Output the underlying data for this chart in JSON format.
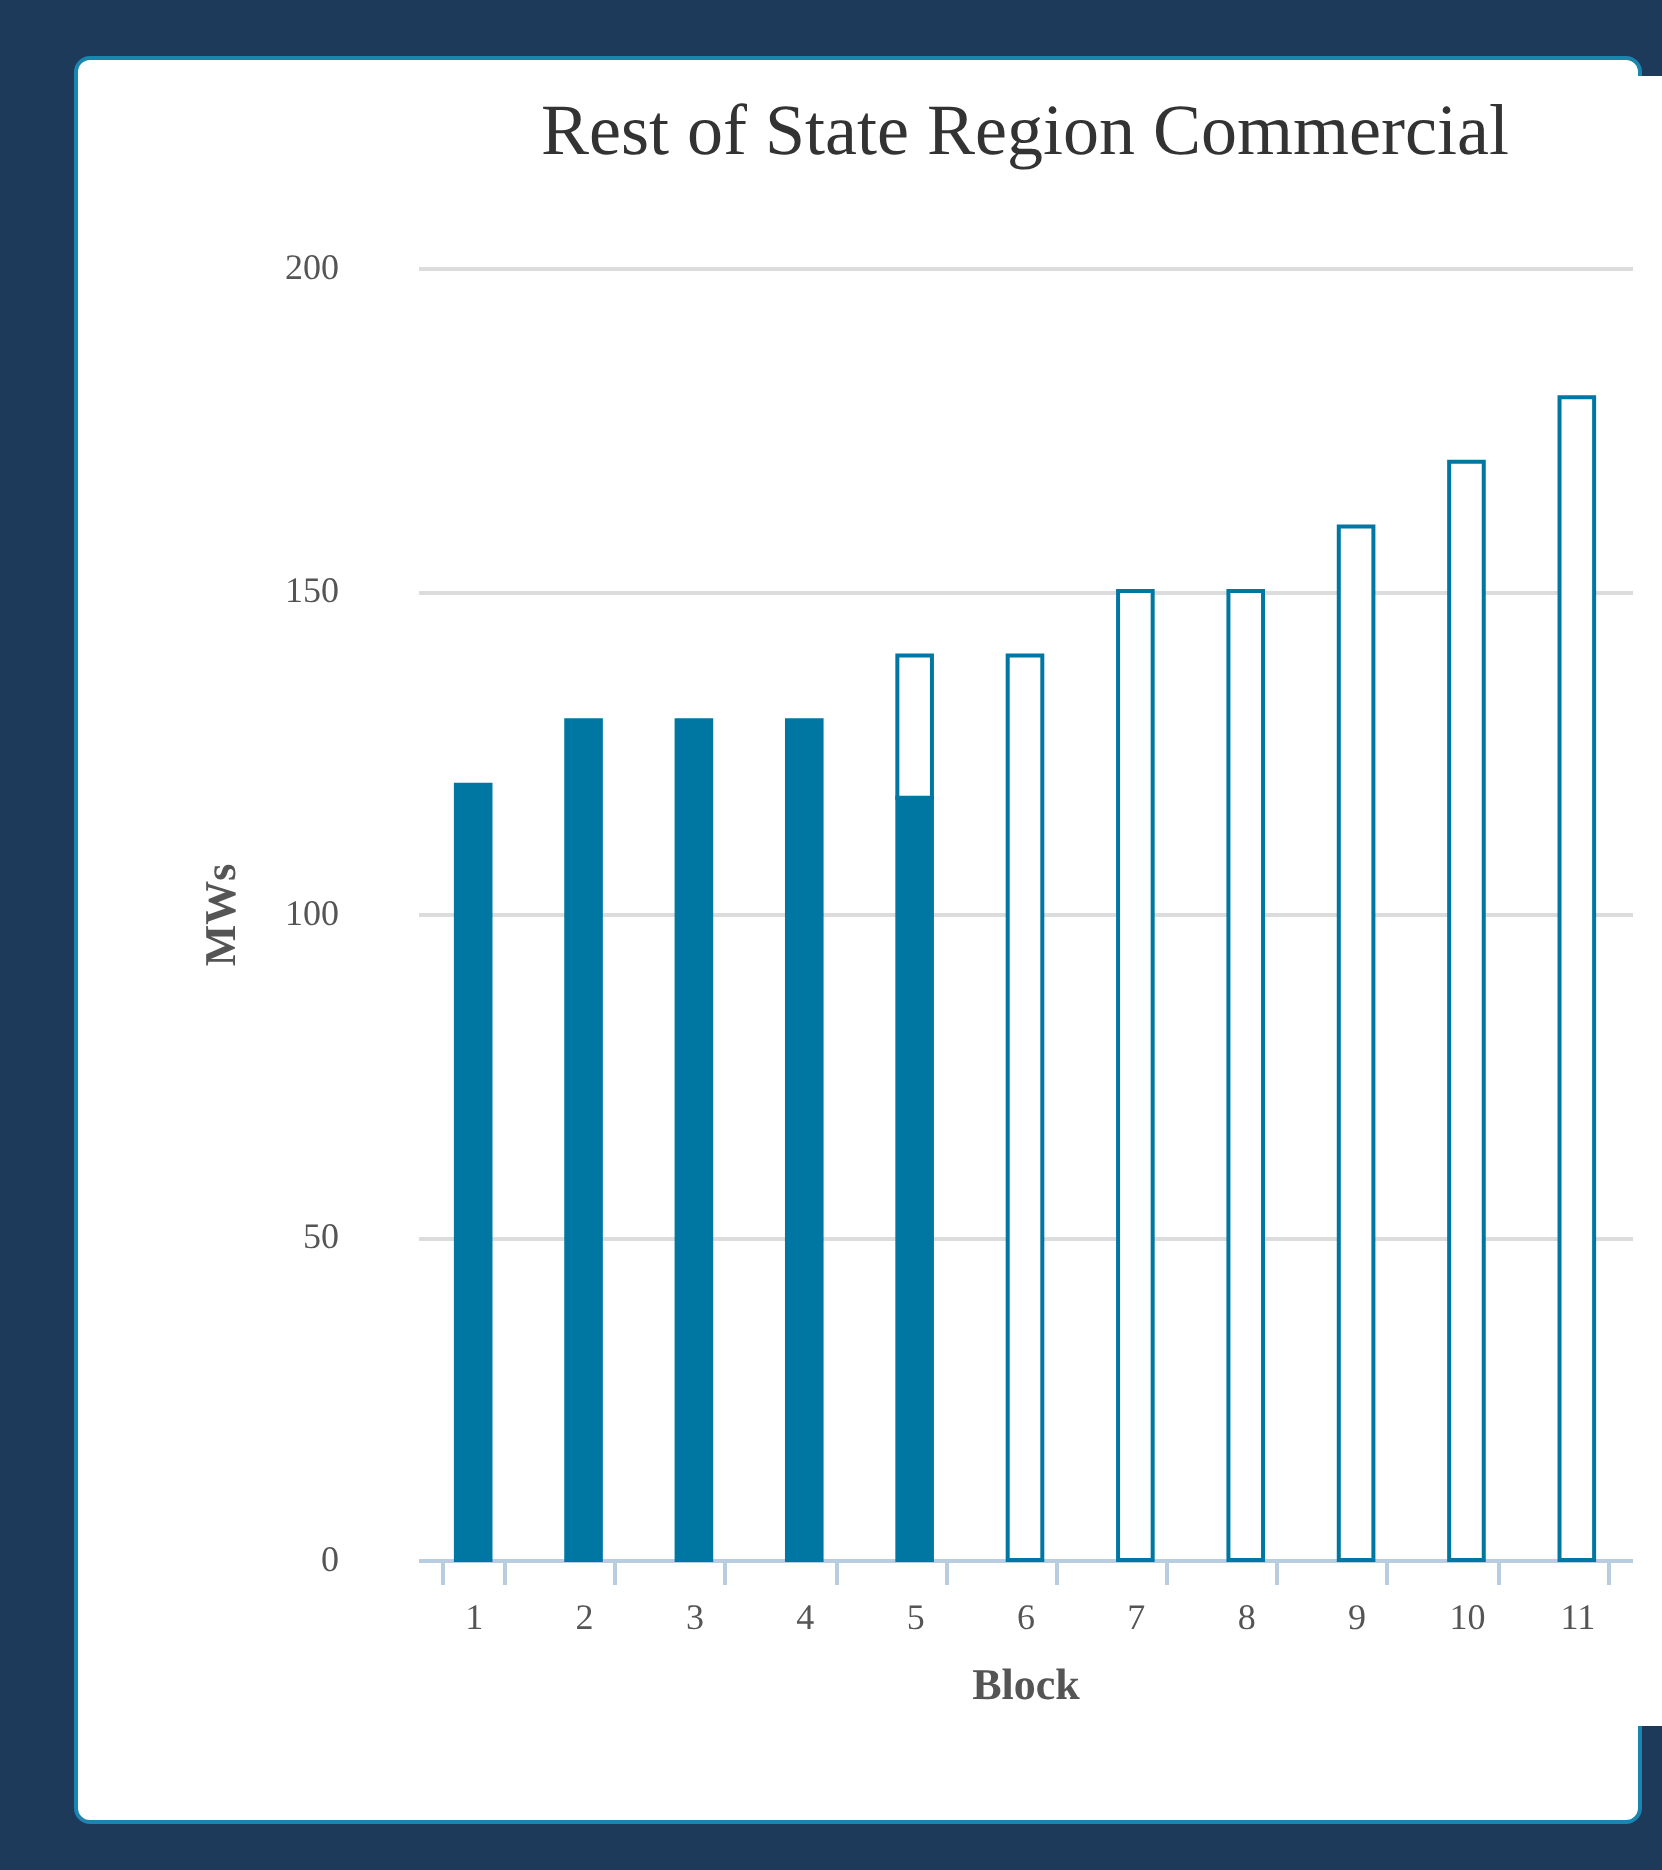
{
  "chart_data": {
    "type": "bar",
    "title": "Rest of State Region Commercial",
    "xlabel": "Block",
    "ylabel": "MWs",
    "categories": [
      "1",
      "2",
      "3",
      "4",
      "5",
      "6",
      "7",
      "8",
      "9",
      "10",
      "11"
    ],
    "series": [
      {
        "color": "#0077a3",
        "values": [
          120,
          130,
          130,
          130,
          118,
          null,
          null,
          null,
          null,
          null,
          null
        ]
      },
      {
        "color": "#ffffff",
        "values": [
          null,
          null,
          null,
          null,
          22,
          140,
          150,
          150,
          160,
          170,
          180
        ]
      }
    ],
    "stacked": true,
    "ylim": [
      0,
      200
    ],
    "yticks": [
      0,
      50,
      100,
      150,
      200
    ],
    "grid": "y",
    "legend": false
  }
}
